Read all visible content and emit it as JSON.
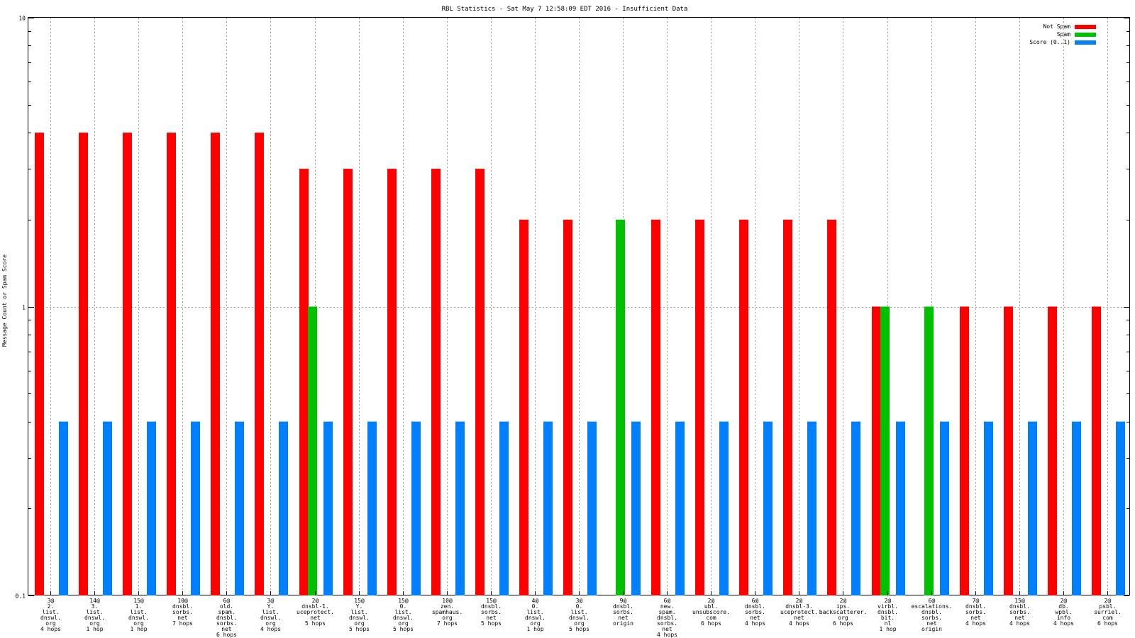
{
  "chart_data": {
    "type": "bar",
    "title": "RBL Statistics - Sat May  7 12:58:09 EDT 2016 - Insufficient Data",
    "xlabel": "",
    "ylabel": "Message Count or Spam Score",
    "yscale": "log",
    "ylim": [
      0.1,
      10
    ],
    "yticks": [
      "0.1",
      "1",
      "10"
    ],
    "grid": "dotted vertical at each category, dotted horizontal at 1",
    "legend_position": "top-right",
    "categories": [
      [
        "3@",
        "2.",
        "list.",
        "dnswl.",
        "org",
        "4 hops"
      ],
      [
        "14@",
        "3.",
        "list.",
        "dnswl.",
        "org",
        "1 hop"
      ],
      [
        "15@",
        "1.",
        "list.",
        "dnswl.",
        "org",
        "1 hop"
      ],
      [
        "10@",
        "dnsbl.",
        "sorbs.",
        "net",
        "7 hops"
      ],
      [
        "6@",
        "old.",
        "spam.",
        "dnsbl.",
        "sorbs.",
        "net",
        "6 hops"
      ],
      [
        "3@",
        "Y.",
        "list.",
        "dnswl.",
        "org",
        "4 hops"
      ],
      [
        "2@",
        "dnsbl-1.",
        "uceprotect.",
        "net",
        "5 hops"
      ],
      [
        "15@",
        "Y.",
        "list.",
        "dnswl.",
        "org",
        "5 hops"
      ],
      [
        "15@",
        "0.",
        "list.",
        "dnswl.",
        "org",
        "5 hops"
      ],
      [
        "10@",
        "zen.",
        "spamhaus.",
        "org",
        "7 hops"
      ],
      [
        "15@",
        "dnsbl.",
        "sorbs.",
        "net",
        "5 hops"
      ],
      [
        "4@",
        "0.",
        "list.",
        "dnswl.",
        "org",
        "1 hop"
      ],
      [
        "3@",
        "0.",
        "list.",
        "dnswl.",
        "org",
        "5 hops"
      ],
      [
        "9@",
        "dnsbl.",
        "sorbs.",
        "net",
        "origin"
      ],
      [
        "6@",
        "new.",
        "spam.",
        "dnsbl.",
        "sorbs.",
        "net",
        "4 hops"
      ],
      [
        "2@",
        "ubl.",
        "unsubscore.",
        "com",
        "6 hops"
      ],
      [
        "6@",
        "dnsbl.",
        "sorbs.",
        "net",
        "4 hops"
      ],
      [
        "2@",
        "dnsbl-3.",
        "uceprotect.",
        "net",
        "4 hops"
      ],
      [
        "2@",
        "ips.",
        "backscatterer.",
        "org",
        "6 hops"
      ],
      [
        "2@",
        "virbl.",
        "dnsbl.",
        "bit.",
        "nl",
        "1 hop"
      ],
      [
        "6@",
        "escalations.",
        "dnsbl.",
        "sorbs.",
        "net",
        "origin"
      ],
      [
        "7@",
        "dnsbl.",
        "sorbs.",
        "net",
        "4 hops"
      ],
      [
        "15@",
        "dnsbl.",
        "sorbs.",
        "net",
        "4 hops"
      ],
      [
        "2@",
        "db.",
        "wpbl.",
        "info",
        "4 hops"
      ],
      [
        "2@",
        "psbl.",
        "surriel.",
        "com",
        "6 hops"
      ]
    ],
    "series": [
      {
        "name": "Not Spam",
        "color": "#ff0000",
        "values": [
          4,
          4,
          4,
          4,
          4,
          4,
          3,
          3,
          3,
          3,
          3,
          2,
          2,
          null,
          2,
          2,
          2,
          2,
          2,
          1,
          null,
          1,
          1,
          1,
          1
        ]
      },
      {
        "name": "Spam",
        "color": "#00c000",
        "values": [
          null,
          null,
          null,
          null,
          null,
          null,
          1,
          null,
          null,
          null,
          null,
          null,
          null,
          2,
          null,
          null,
          null,
          null,
          null,
          1,
          1,
          null,
          null,
          null,
          null
        ]
      },
      {
        "name": "Score (0..1)",
        "color": "#0080ff",
        "values": [
          0.4,
          0.4,
          0.4,
          0.4,
          0.4,
          0.4,
          0.4,
          0.4,
          0.4,
          0.4,
          0.4,
          0.4,
          0.4,
          0.4,
          0.4,
          0.4,
          0.4,
          0.4,
          0.4,
          0.4,
          0.4,
          0.4,
          0.4,
          0.4,
          0.4
        ]
      }
    ]
  }
}
